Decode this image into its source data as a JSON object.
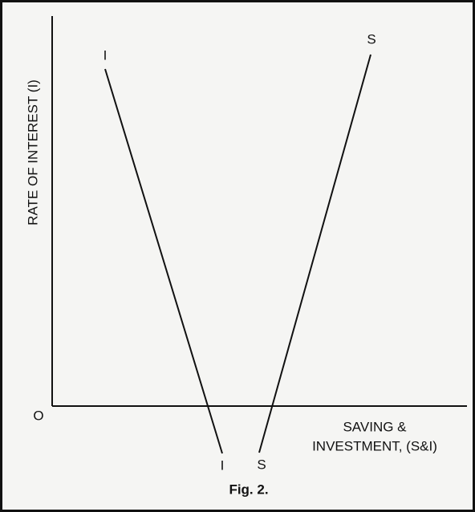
{
  "figure": {
    "y_axis_label": "RATE OF INTEREST (I)",
    "origin_label": "O",
    "x_axis_label": [
      "SAVING &",
      "INVESTMENT, (S&I)"
    ],
    "investment_curve": {
      "top_label": "I",
      "bottom_label": "I"
    },
    "saving_curve": {
      "top_label": "S",
      "bottom_label": "S"
    },
    "caption": "Fig. 2."
  }
}
